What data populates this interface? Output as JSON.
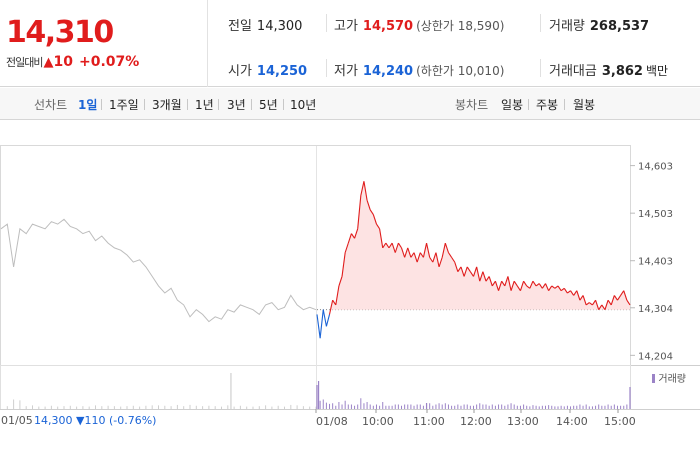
{
  "quote": {
    "price": "14,310",
    "change_label": "전일대비",
    "change_symbol": "▲",
    "change": "10",
    "change_pct": "+0.07%"
  },
  "stats": {
    "prev_close_label": "전일",
    "prev_close": "14,300",
    "high_label": "고가",
    "high": "14,570",
    "upper_limit": "(상한가 18,590)",
    "volume_label": "거래량",
    "volume": "268,537",
    "open_label": "시가",
    "open": "14,250",
    "low_label": "저가",
    "low": "14,240",
    "lower_limit": "(하한가 10,010)",
    "turnover_label": "거래대금",
    "turnover": "3,862",
    "turnover_unit": "백만"
  },
  "tabs": {
    "line_label": "선차트",
    "line": [
      "1일",
      "1주일",
      "3개월",
      "1년",
      "3년",
      "5년",
      "10년"
    ],
    "active": "1일",
    "candle_label": "봉차트",
    "candle": [
      "일봉",
      "주봉",
      "월봉"
    ]
  },
  "footer": {
    "prev_date": "01/05",
    "prev_info": "14,300 ▼110 (-0.76%)"
  },
  "colors": {
    "up": "#e01c1c",
    "down": "#1a63d6",
    "prev_line": "#bdbdbd",
    "fill": "#fde3e3",
    "volume": "#9b83c7"
  },
  "chart_data": {
    "type": "line",
    "title": "",
    "yticks": [
      "14,603",
      "14,503",
      "14,403",
      "14,304",
      "14,204"
    ],
    "ytick_values": [
      14603,
      14503,
      14403,
      14304,
      14204
    ],
    "ylim": [
      14190,
      14640
    ],
    "baseline": 14300,
    "xticks": [
      "01/08",
      "10:00",
      "11:00",
      "12:00",
      "13:00",
      "14:00",
      "15:00"
    ],
    "volume_legend": "거래량",
    "series": [
      {
        "role": "prev-day",
        "x": [
          0,
          2,
          4,
          6,
          8,
          10,
          12,
          14,
          16,
          18,
          20,
          22,
          24,
          26,
          28,
          30,
          32,
          34,
          36,
          38,
          40,
          42,
          44,
          46,
          48,
          50,
          52,
          54,
          56,
          58,
          60,
          62,
          64,
          66,
          68,
          70,
          72,
          74,
          76,
          78,
          80,
          82,
          84,
          86,
          88,
          90,
          92,
          94,
          96,
          98,
          100
        ],
        "values": [
          14470,
          14480,
          14390,
          14470,
          14460,
          14480,
          14475,
          14470,
          14485,
          14480,
          14490,
          14475,
          14470,
          14460,
          14465,
          14445,
          14455,
          14440,
          14430,
          14425,
          14415,
          14400,
          14405,
          14390,
          14370,
          14350,
          14335,
          14345,
          14320,
          14310,
          14285,
          14300,
          14290,
          14275,
          14285,
          14280,
          14300,
          14295,
          14310,
          14305,
          14300,
          14290,
          14310,
          14315,
          14300,
          14305,
          14330,
          14310,
          14300,
          14305,
          14300
        ]
      },
      {
        "role": "today",
        "x": [
          0,
          1,
          2,
          3,
          4,
          5,
          6,
          7,
          8,
          9,
          10,
          11,
          12,
          13,
          14,
          15,
          16,
          17,
          18,
          19,
          20,
          21,
          22,
          23,
          24,
          25,
          26,
          27,
          28,
          29,
          30,
          31,
          32,
          33,
          34,
          35,
          36,
          37,
          38,
          39,
          40,
          41,
          42,
          43,
          44,
          45,
          46,
          47,
          48,
          49,
          50,
          51,
          52,
          53,
          54,
          55,
          56,
          57,
          58,
          59,
          60,
          61,
          62,
          63,
          64,
          65,
          66,
          67,
          68,
          69,
          70,
          71,
          72,
          73,
          74,
          75,
          76,
          77,
          78,
          79,
          80,
          81,
          82,
          83,
          84,
          85,
          86,
          87,
          88,
          89,
          90,
          91,
          92,
          93,
          94,
          95,
          96,
          97,
          98,
          99,
          100
        ],
        "values": [
          14290,
          14240,
          14300,
          14265,
          14290,
          14320,
          14310,
          14350,
          14370,
          14420,
          14440,
          14460,
          14450,
          14470,
          14540,
          14570,
          14530,
          14510,
          14500,
          14480,
          14470,
          14430,
          14440,
          14430,
          14440,
          14420,
          14440,
          14430,
          14410,
          14430,
          14410,
          14420,
          14400,
          14420,
          14410,
          14440,
          14410,
          14400,
          14420,
          14390,
          14410,
          14440,
          14420,
          14410,
          14400,
          14380,
          14390,
          14370,
          14390,
          14380,
          14370,
          14390,
          14360,
          14380,
          14360,
          14370,
          14350,
          14360,
          14340,
          14360,
          14350,
          14370,
          14340,
          14360,
          14350,
          14340,
          14360,
          14350,
          14345,
          14360,
          14350,
          14355,
          14345,
          14355,
          14340,
          14350,
          14345,
          14350,
          14340,
          14345,
          14335,
          14340,
          14330,
          14340,
          14320,
          14330,
          14310,
          14315,
          14310,
          14320,
          14300,
          14310,
          14300,
          14320,
          14310,
          14330,
          14320,
          14330,
          14340,
          14320,
          14310
        ]
      }
    ]
  }
}
